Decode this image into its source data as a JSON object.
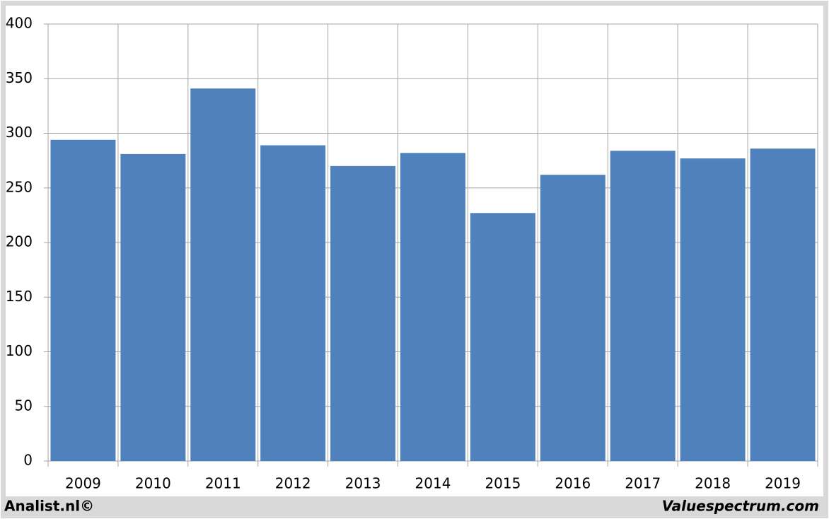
{
  "chart_data": {
    "type": "bar",
    "categories": [
      "2009",
      "2010",
      "2011",
      "2012",
      "2013",
      "2014",
      "2015",
      "2016",
      "2017",
      "2018",
      "2019"
    ],
    "values": [
      294,
      281,
      341,
      289,
      270,
      282,
      227,
      262,
      284,
      277,
      286
    ],
    "color": "#4f81bd",
    "ylim": [
      0,
      400
    ],
    "yticks": [
      0,
      50,
      100,
      150,
      200,
      250,
      300,
      350,
      400
    ],
    "grid": true,
    "footer_left": "Analist.nl©",
    "footer_right": "Valuespectrum.com"
  }
}
